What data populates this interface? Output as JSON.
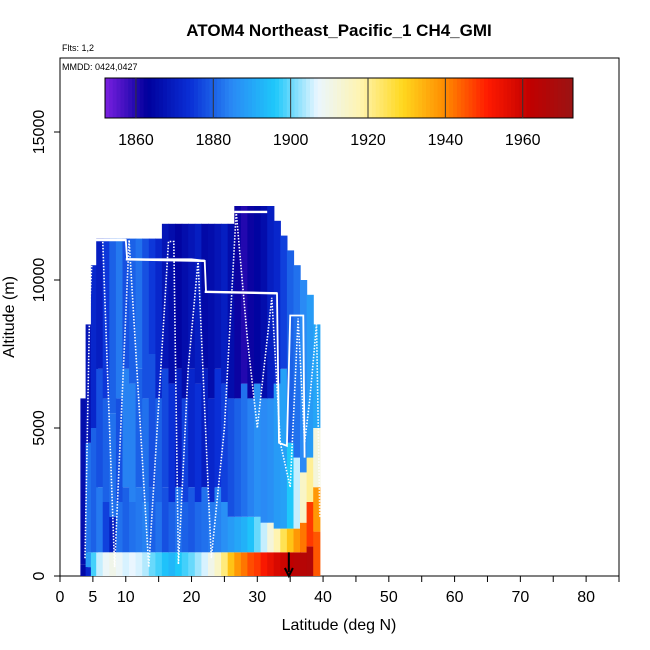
{
  "chart_data": {
    "type": "heatmap",
    "title": "ATOM4 Northeast_Pacific_1 CH4_GMI",
    "flights_label": "Flts: 1,2",
    "dates_label": "MMDD: 0424,0427",
    "xlabel": "Latitude (deg N)",
    "ylabel": "Altitude (m)",
    "xlim": [
      0,
      85
    ],
    "ylim": [
      0,
      17500
    ],
    "x_ticks": [
      0,
      5,
      10,
      20,
      30,
      40,
      50,
      60,
      70,
      80
    ],
    "y_ticks": [
      0,
      5000,
      10000,
      15000
    ],
    "colorbar": {
      "min": 1852,
      "max": 1973,
      "ticks": [
        1860,
        1880,
        1900,
        1920,
        1940,
        1960
      ],
      "colors": [
        "#7b1fe0",
        "#00009c",
        "#0a2fd6",
        "#2a8af5",
        "#1ec8fa",
        "#eaf6ff",
        "#fff4b0",
        "#ffd81e",
        "#ff8a00",
        "#ff1a00",
        "#c00000",
        "#9a1414"
      ]
    },
    "columns": [
      {
        "lat": 3.6,
        "top": 6000,
        "segments": [
          [
            0,
            400,
            1865
          ],
          [
            400,
            6000,
            1866
          ]
        ]
      },
      {
        "lat": 4.4,
        "top": 8500,
        "segments": [
          [
            0,
            300,
            1872
          ],
          [
            300,
            800,
            1888
          ],
          [
            800,
            4500,
            1882
          ],
          [
            4500,
            8500,
            1868
          ]
        ]
      },
      {
        "lat": 5.2,
        "top": 10500,
        "segments": [
          [
            0,
            800,
            1898
          ],
          [
            800,
            5000,
            1880
          ],
          [
            5000,
            10500,
            1872
          ]
        ]
      },
      {
        "lat": 6.0,
        "top": 11400,
        "segments": [
          [
            0,
            800,
            1905
          ],
          [
            800,
            3000,
            1883
          ],
          [
            3000,
            7000,
            1878
          ],
          [
            7000,
            11400,
            1870
          ]
        ]
      },
      {
        "lat": 7.0,
        "top": 11400,
        "segments": [
          [
            0,
            800,
            1908
          ],
          [
            800,
            2500,
            1876
          ],
          [
            2500,
            6000,
            1880
          ],
          [
            6000,
            11400,
            1875
          ]
        ]
      },
      {
        "lat": 8.0,
        "top": 11400,
        "segments": [
          [
            0,
            800,
            1910
          ],
          [
            800,
            2000,
            1870
          ],
          [
            2000,
            5500,
            1882
          ],
          [
            5500,
            11400,
            1880
          ]
        ]
      },
      {
        "lat": 9.0,
        "top": 11400,
        "segments": [
          [
            0,
            800,
            1908
          ],
          [
            800,
            2500,
            1882
          ],
          [
            2500,
            6000,
            1878
          ],
          [
            6000,
            11400,
            1883
          ]
        ]
      },
      {
        "lat": 10.0,
        "top": 11400,
        "segments": [
          [
            0,
            800,
            1906
          ],
          [
            800,
            3000,
            1880
          ],
          [
            3000,
            7000,
            1884
          ],
          [
            7000,
            11400,
            1878
          ]
        ]
      },
      {
        "lat": 11.0,
        "top": 11400,
        "segments": [
          [
            0,
            800,
            1907
          ],
          [
            800,
            2500,
            1882
          ],
          [
            2500,
            6500,
            1884
          ],
          [
            6500,
            11400,
            1880
          ]
        ]
      },
      {
        "lat": 12.0,
        "top": 11400,
        "segments": [
          [
            0,
            800,
            1906
          ],
          [
            800,
            3000,
            1883
          ],
          [
            3000,
            7000,
            1880
          ],
          [
            7000,
            11400,
            1882
          ]
        ]
      },
      {
        "lat": 13.0,
        "top": 11400,
        "segments": [
          [
            0,
            800,
            1904
          ],
          [
            800,
            2500,
            1884
          ],
          [
            2500,
            6000,
            1882
          ],
          [
            6000,
            11400,
            1878
          ]
        ]
      },
      {
        "lat": 14.0,
        "top": 11400,
        "segments": [
          [
            0,
            800,
            1900
          ],
          [
            800,
            3000,
            1880
          ],
          [
            3000,
            7500,
            1878
          ],
          [
            7500,
            11400,
            1875
          ]
        ]
      },
      {
        "lat": 15.0,
        "top": 11400,
        "segments": [
          [
            0,
            800,
            1898
          ],
          [
            800,
            2500,
            1882
          ],
          [
            2500,
            6000,
            1880
          ],
          [
            6000,
            11400,
            1872
          ]
        ]
      },
      {
        "lat": 16.0,
        "top": 11900,
        "segments": [
          [
            0,
            800,
            1895
          ],
          [
            800,
            3000,
            1878
          ],
          [
            3000,
            7000,
            1877
          ],
          [
            7000,
            11900,
            1868
          ]
        ]
      },
      {
        "lat": 17.0,
        "top": 11900,
        "segments": [
          [
            0,
            800,
            1893
          ],
          [
            800,
            2500,
            1880
          ],
          [
            2500,
            6500,
            1874
          ],
          [
            6500,
            11900,
            1866
          ]
        ]
      },
      {
        "lat": 18.0,
        "top": 11900,
        "segments": [
          [
            0,
            800,
            1896
          ],
          [
            800,
            3000,
            1882
          ],
          [
            3000,
            7000,
            1870
          ],
          [
            7000,
            11900,
            1864
          ]
        ]
      },
      {
        "lat": 19.0,
        "top": 11900,
        "segments": [
          [
            0,
            800,
            1898
          ],
          [
            800,
            2500,
            1880
          ],
          [
            2500,
            6000,
            1876
          ],
          [
            6000,
            11900,
            1866
          ]
        ]
      },
      {
        "lat": 20.0,
        "top": 11900,
        "segments": [
          [
            0,
            800,
            1900
          ],
          [
            800,
            3000,
            1879
          ],
          [
            3000,
            7000,
            1872
          ],
          [
            7000,
            11900,
            1868
          ]
        ]
      },
      {
        "lat": 21.0,
        "top": 11900,
        "segments": [
          [
            0,
            800,
            1903
          ],
          [
            800,
            2500,
            1881
          ],
          [
            2500,
            6500,
            1874
          ],
          [
            6500,
            11900,
            1870
          ]
        ]
      },
      {
        "lat": 22.0,
        "top": 11900,
        "segments": [
          [
            0,
            800,
            1906
          ],
          [
            800,
            3000,
            1882
          ],
          [
            3000,
            7000,
            1870
          ],
          [
            7000,
            11900,
            1865
          ]
        ]
      },
      {
        "lat": 23.0,
        "top": 11900,
        "segments": [
          [
            0,
            800,
            1910
          ],
          [
            800,
            2500,
            1883
          ],
          [
            2500,
            6000,
            1872
          ],
          [
            6000,
            11900,
            1866
          ]
        ]
      },
      {
        "lat": 24.0,
        "top": 11900,
        "segments": [
          [
            0,
            800,
            1915
          ],
          [
            800,
            3000,
            1884
          ],
          [
            3000,
            7000,
            1874
          ],
          [
            7000,
            11900,
            1868
          ]
        ]
      },
      {
        "lat": 25.0,
        "top": 11900,
        "segments": [
          [
            0,
            800,
            1922
          ],
          [
            800,
            2500,
            1886
          ],
          [
            2500,
            6500,
            1876
          ],
          [
            6500,
            11900,
            1870
          ]
        ]
      },
      {
        "lat": 26.0,
        "top": 11900,
        "segments": [
          [
            0,
            800,
            1932
          ],
          [
            800,
            2000,
            1888
          ],
          [
            2000,
            6000,
            1878
          ],
          [
            6000,
            11900,
            1866
          ]
        ]
      },
      {
        "lat": 27.0,
        "top": 12500,
        "segments": [
          [
            0,
            800,
            1938
          ],
          [
            800,
            2000,
            1890
          ],
          [
            2000,
            6000,
            1880
          ],
          [
            6000,
            12500,
            1862
          ]
        ]
      },
      {
        "lat": 28.0,
        "top": 12500,
        "segments": [
          [
            0,
            800,
            1942
          ],
          [
            800,
            2000,
            1892
          ],
          [
            2000,
            6500,
            1882
          ],
          [
            6500,
            12500,
            1860
          ]
        ]
      },
      {
        "lat": 29.0,
        "top": 12500,
        "segments": [
          [
            0,
            800,
            1946
          ],
          [
            800,
            2000,
            1895
          ],
          [
            2000,
            6000,
            1884
          ],
          [
            6000,
            12500,
            1862
          ]
        ]
      },
      {
        "lat": 30.0,
        "top": 12500,
        "segments": [
          [
            0,
            800,
            1948
          ],
          [
            800,
            2000,
            1900
          ],
          [
            2000,
            6500,
            1886
          ],
          [
            6500,
            12500,
            1864
          ]
        ]
      },
      {
        "lat": 31.0,
        "top": 12500,
        "segments": [
          [
            0,
            800,
            1952
          ],
          [
            800,
            1800,
            1905
          ],
          [
            1800,
            6000,
            1885
          ],
          [
            6000,
            12500,
            1866
          ]
        ]
      },
      {
        "lat": 32.0,
        "top": 12500,
        "segments": [
          [
            0,
            800,
            1955
          ],
          [
            800,
            1800,
            1912
          ],
          [
            1800,
            6000,
            1886
          ],
          [
            6000,
            12500,
            1870
          ]
        ]
      },
      {
        "lat": 33.0,
        "top": 12000,
        "segments": [
          [
            0,
            800,
            1958
          ],
          [
            800,
            1600,
            1918
          ],
          [
            1600,
            6500,
            1888
          ],
          [
            6500,
            12000,
            1872
          ]
        ]
      },
      {
        "lat": 34.0,
        "top": 11500,
        "segments": [
          [
            0,
            800,
            1960
          ],
          [
            800,
            1600,
            1925
          ],
          [
            1600,
            7000,
            1889
          ],
          [
            7000,
            11500,
            1876
          ]
        ]
      },
      {
        "lat": 35.0,
        "top": 11000,
        "segments": [
          [
            0,
            800,
            1962
          ],
          [
            800,
            1600,
            1932
          ],
          [
            1600,
            4500,
            1896
          ],
          [
            4500,
            11000,
            1880
          ]
        ]
      },
      {
        "lat": 36.0,
        "top": 10500,
        "segments": [
          [
            0,
            800,
            1964
          ],
          [
            800,
            1600,
            1938
          ],
          [
            1600,
            4000,
            1905
          ],
          [
            4000,
            10500,
            1882
          ]
        ]
      },
      {
        "lat": 37.0,
        "top": 10000,
        "segments": [
          [
            0,
            800,
            1965
          ],
          [
            800,
            1800,
            1942
          ],
          [
            1800,
            3500,
            1915
          ],
          [
            3500,
            10000,
            1885
          ]
        ]
      },
      {
        "lat": 38.0,
        "top": 9500,
        "segments": [
          [
            0,
            1000,
            1966
          ],
          [
            1000,
            2500,
            1948
          ],
          [
            2500,
            4000,
            1920
          ],
          [
            4000,
            9500,
            1888
          ]
        ]
      },
      {
        "lat": 39.0,
        "top": 8500,
        "segments": [
          [
            0,
            1500,
            1945
          ],
          [
            1500,
            3000,
            1938
          ],
          [
            3000,
            5000,
            1912
          ],
          [
            5000,
            8500,
            1890
          ]
        ]
      }
    ],
    "flight_track": {
      "line_color": "#ffffff",
      "solid": [
        [
          [
            5.0,
            11350
          ],
          [
            10.0,
            11350
          ],
          [
            10.2,
            10700
          ],
          [
            20.0,
            10700
          ],
          [
            22.0,
            10650
          ],
          [
            22.2,
            9600
          ],
          [
            33.0,
            9550
          ],
          [
            33.3,
            4500
          ],
          [
            34.5,
            4400
          ],
          [
            35.0,
            8800
          ],
          [
            37.0,
            8800
          ],
          [
            37.2,
            4000
          ]
        ]
      ],
      "solid_segments": [
        [
          [
            5,
            11350
          ],
          [
            10,
            11350
          ]
        ],
        [
          [
            10,
            10700
          ],
          [
            22,
            10650
          ]
        ],
        [
          [
            22,
            9600
          ],
          [
            33,
            9550
          ]
        ],
        [
          [
            26.5,
            12300
          ],
          [
            31.5,
            12300
          ]
        ]
      ],
      "dotted": [
        [
          [
            3.8,
            600
          ],
          [
            4.5,
            9000
          ],
          [
            5.0,
            11350
          ],
          [
            6.5,
            11350
          ],
          [
            8.3,
            300
          ],
          [
            10.5,
            11350
          ],
          [
            13.5,
            300
          ],
          [
            16.5,
            11300
          ],
          [
            17.3,
            11300
          ],
          [
            18.0,
            400
          ],
          [
            19.5,
            7000
          ],
          [
            21.0,
            10650
          ],
          [
            23.0,
            600
          ],
          [
            25.0,
            5000
          ],
          [
            26.8,
            12300
          ],
          [
            28.5,
            8000
          ],
          [
            30.0,
            5000
          ],
          [
            32.2,
            9400
          ],
          [
            33.5,
            4500
          ],
          [
            35.0,
            3000
          ],
          [
            36.2,
            8700
          ],
          [
            37.2,
            4500
          ],
          [
            38.0,
            6000
          ],
          [
            39.0,
            8500
          ],
          [
            39.5,
            2000
          ]
        ]
      ]
    },
    "arrow_marker": {
      "lat": 34.8,
      "from_alt": 800,
      "to_alt": 0
    }
  }
}
